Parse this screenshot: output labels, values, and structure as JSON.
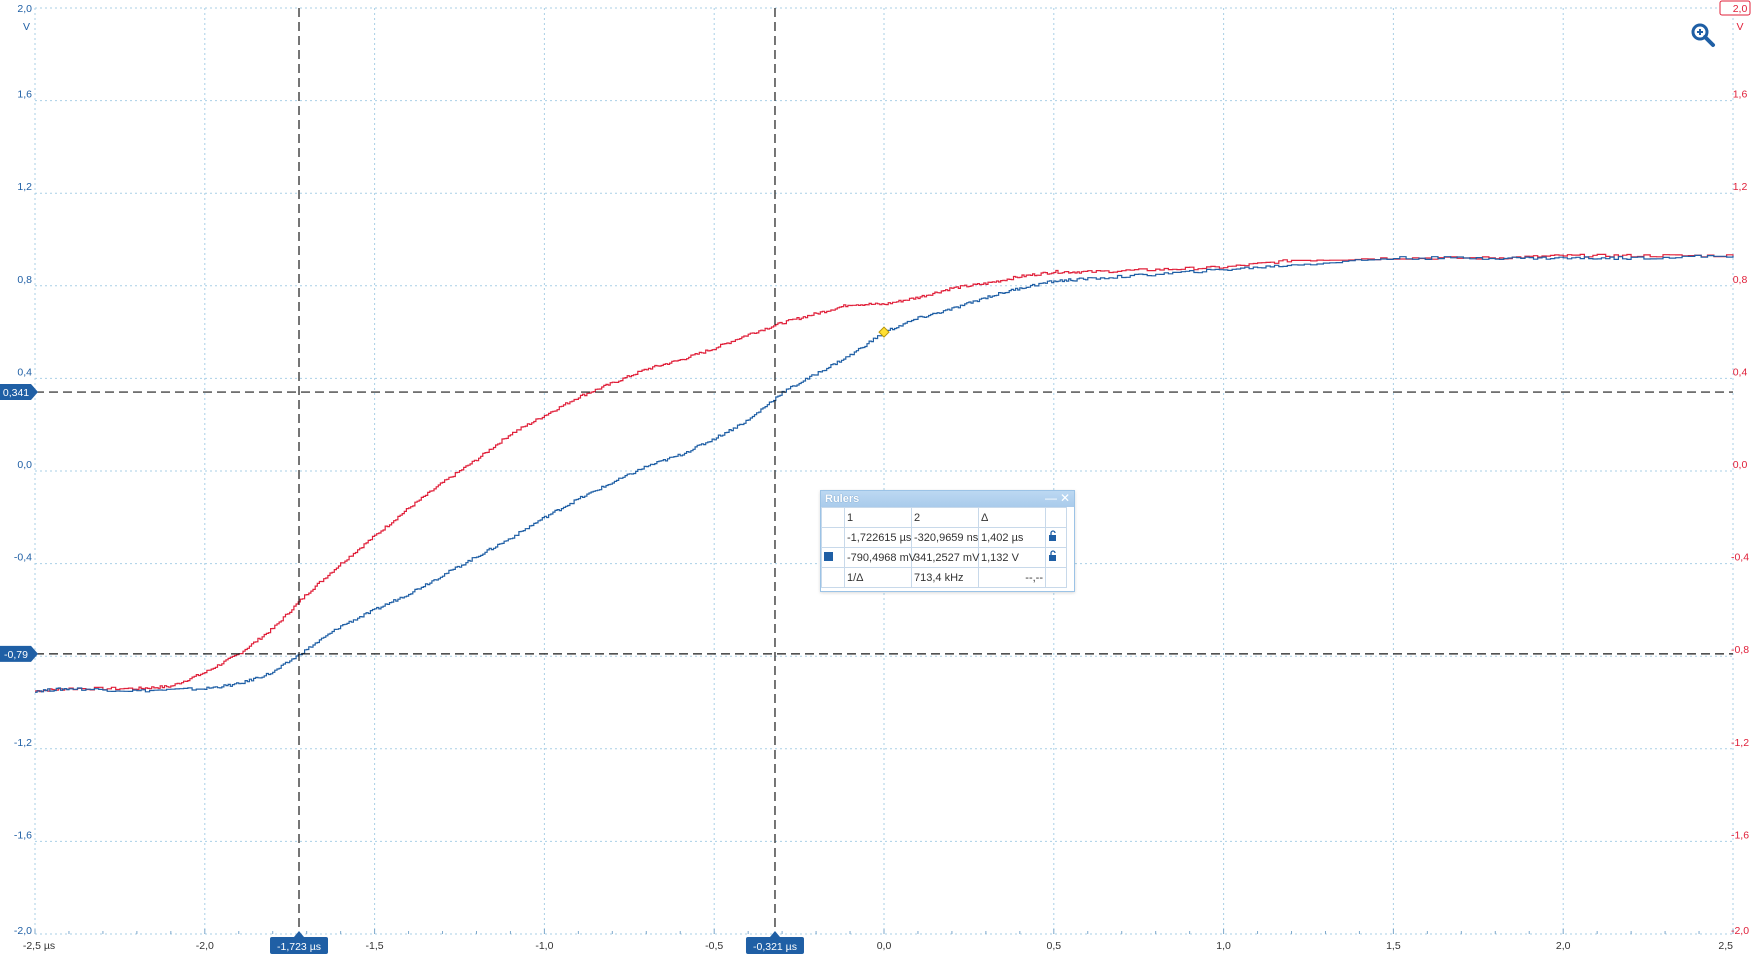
{
  "colors": {
    "channel_a": "#1f5fa5",
    "channel_b": "#e0203a",
    "grid": "#a9cfe6",
    "cursor_line": "#1a1a1a",
    "marker_fill": "#1f5fa5"
  },
  "axes": {
    "left_unit": "V",
    "right_unit": "V",
    "left_ticks": [
      "2,0",
      "1,6",
      "1,2",
      "0,8",
      "0,4",
      "0,0",
      "-0,4",
      "-0,8",
      "-1,2",
      "-1,6",
      "-2,0"
    ],
    "right_ticks": [
      "2,0",
      "1,6",
      "1,2",
      "0,8",
      "0,4",
      "0,0",
      "-0,4",
      "-0,8",
      "-1,2",
      "-1,6",
      "-2,0"
    ],
    "x_ticks": [
      "-2,5 µs",
      "-2,0",
      "-1,5",
      "-1,0",
      "-0,5",
      "0,0",
      "0,5",
      "1,0",
      "1,5",
      "2,0",
      "2,5"
    ],
    "x_range": [
      -2.5,
      2.5
    ],
    "y_range": [
      -2.0,
      2.0
    ]
  },
  "cursors": {
    "time_1_label": "-1,723 µs",
    "time_2_label": "-0,321 µs",
    "volt_1_label": "-0,79",
    "volt_2_label": "0,341",
    "time_1": -1.7226,
    "time_2": -0.321,
    "volt_1": -0.79,
    "volt_2": 0.341
  },
  "trigger": {
    "time": 0.0,
    "voltage": 0.6
  },
  "zoom_icon": "zoom-in-icon",
  "rulers": {
    "title": "Rulers",
    "minimize": "—",
    "close": "✕",
    "header": {
      "col1": "1",
      "col2": "2",
      "delta": "Δ"
    },
    "time_row": {
      "v1": "-1,722615 µs",
      "v2": "-320,9659 ns",
      "delta": "1,402 µs"
    },
    "volt_row": {
      "v1": "-790,4968 mV",
      "v2": "341,2527 mV",
      "delta": "1,132 V"
    },
    "freq_row": {
      "label": "1/Δ",
      "value": "713,4 kHz",
      "delta": "--,--"
    }
  },
  "chart_data": {
    "type": "line",
    "xlabel": "µs",
    "ylabel": "V",
    "xlim": [
      -2.5,
      2.5
    ],
    "ylim": [
      -2.0,
      2.0
    ],
    "grid": true,
    "series": [
      {
        "color": "#e0203a",
        "x": [
          -2.5,
          -2.4,
          -2.2,
          -2.1,
          -2.0,
          -1.9,
          -1.8,
          -1.7,
          -1.6,
          -1.5,
          -1.4,
          -1.3,
          -1.2,
          -1.1,
          -1.0,
          -0.9,
          -0.8,
          -0.7,
          -0.6,
          -0.5,
          -0.4,
          -0.3,
          -0.2,
          -0.1,
          0.0,
          0.1,
          0.2,
          0.3,
          0.4,
          0.5,
          0.6,
          0.8,
          1.0,
          1.2,
          1.5,
          1.8,
          2.0,
          2.2,
          2.5
        ],
        "y": [
          -0.95,
          -0.94,
          -0.94,
          -0.93,
          -0.87,
          -0.79,
          -0.68,
          -0.53,
          -0.4,
          -0.28,
          -0.16,
          -0.05,
          0.05,
          0.16,
          0.24,
          0.32,
          0.38,
          0.44,
          0.48,
          0.53,
          0.59,
          0.64,
          0.68,
          0.72,
          0.72,
          0.75,
          0.79,
          0.81,
          0.84,
          0.86,
          0.86,
          0.87,
          0.88,
          0.91,
          0.92,
          0.92,
          0.93,
          0.93,
          0.93
        ]
      },
      {
        "color": "#1f5fa5",
        "x": [
          -2.5,
          -2.4,
          -2.2,
          -2.0,
          -1.9,
          -1.8,
          -1.7,
          -1.6,
          -1.5,
          -1.4,
          -1.3,
          -1.2,
          -1.1,
          -1.0,
          -0.9,
          -0.8,
          -0.7,
          -0.6,
          -0.5,
          -0.4,
          -0.3,
          -0.2,
          -0.1,
          0.0,
          0.1,
          0.2,
          0.3,
          0.4,
          0.5,
          0.6,
          0.8,
          1.0,
          1.2,
          1.5,
          1.8,
          2.0,
          2.2,
          2.5
        ],
        "y": [
          -0.95,
          -0.94,
          -0.95,
          -0.94,
          -0.92,
          -0.87,
          -0.77,
          -0.67,
          -0.6,
          -0.53,
          -0.45,
          -0.37,
          -0.29,
          -0.2,
          -0.12,
          -0.05,
          0.02,
          0.07,
          0.14,
          0.22,
          0.34,
          0.42,
          0.5,
          0.6,
          0.66,
          0.7,
          0.75,
          0.79,
          0.82,
          0.83,
          0.85,
          0.87,
          0.89,
          0.92,
          0.92,
          0.92,
          0.92,
          0.93
        ]
      }
    ]
  }
}
